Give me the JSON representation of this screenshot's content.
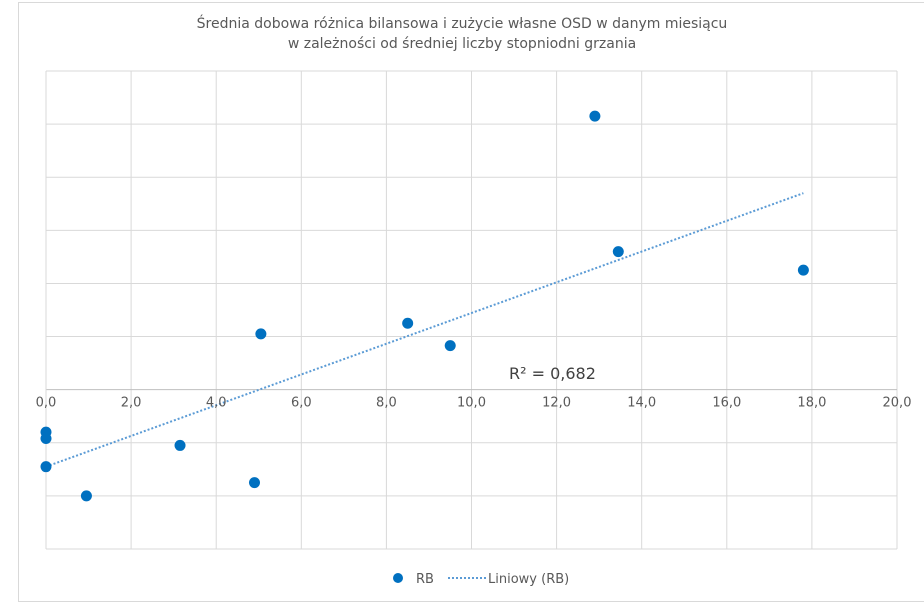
{
  "chart_data": {
    "type": "scatter",
    "title_lines": [
      "Średnia dobowa różnica bilansowa i zużycie własne OSD w danym miesiącu",
      "w zależności od średniej liczby stopniodni grzania"
    ],
    "xlabel": "",
    "ylabel": "",
    "xlim": [
      0,
      20
    ],
    "x_ticks": [
      0,
      2,
      4,
      6,
      8,
      10,
      12,
      14,
      16,
      18,
      20
    ],
    "x_tick_labels": [
      "0,0",
      "2,0",
      "4,0",
      "6,0",
      "8,0",
      "10,0",
      "12,0",
      "14,0",
      "16,0",
      "18,0",
      "20,0"
    ],
    "ylim": [
      -3,
      6
    ],
    "y_ticks": [
      -3,
      -2,
      -1,
      0,
      1,
      2,
      3,
      4,
      5,
      6
    ],
    "y_tick_labels_visible": false,
    "grid": true,
    "series": [
      {
        "name": "RB",
        "color": "#0070c0",
        "points": [
          {
            "x": 0.0,
            "y": -0.8
          },
          {
            "x": 0.0,
            "y": -0.92
          },
          {
            "x": 0.0,
            "y": -1.45
          },
          {
            "x": 0.95,
            "y": -2.0
          },
          {
            "x": 3.15,
            "y": -1.05
          },
          {
            "x": 4.9,
            "y": -1.75
          },
          {
            "x": 5.05,
            "y": 1.05
          },
          {
            "x": 8.5,
            "y": 1.25
          },
          {
            "x": 9.5,
            "y": 0.83
          },
          {
            "x": 12.9,
            "y": 5.15
          },
          {
            "x": 13.45,
            "y": 2.6
          },
          {
            "x": 17.8,
            "y": 2.25
          }
        ]
      }
    ],
    "trendline": {
      "name": "Liniowy (RB)",
      "type": "linear",
      "color": "#5b9bd5",
      "style": "dotted",
      "x_range": [
        0,
        17.8
      ],
      "y_start": -1.45,
      "y_end": 3.7,
      "r_squared_label": "R² = 0,682"
    },
    "legend": {
      "position": "bottom",
      "entries": [
        "RB",
        "Liniowy (RB)"
      ]
    }
  }
}
